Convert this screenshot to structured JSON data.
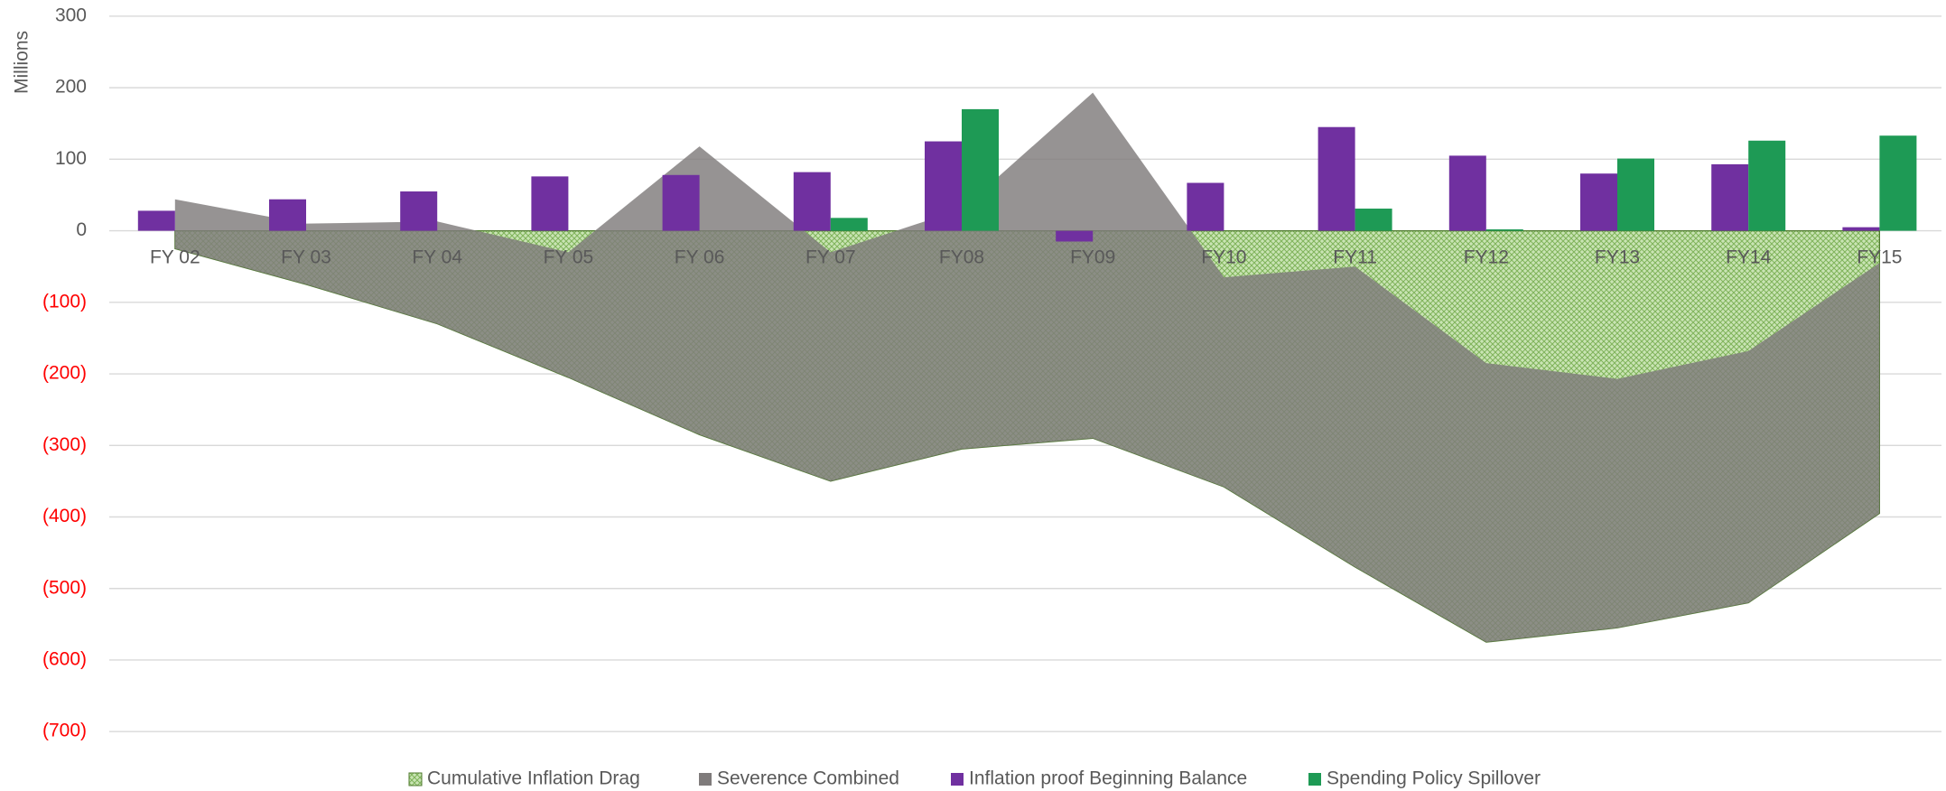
{
  "chart_data": {
    "type": "combo",
    "y_axis_title": "Millions",
    "categories": [
      "FY 02",
      "FY 03",
      "FY 04",
      "FY 05",
      "FY 06",
      "FY 07",
      "FY08",
      "FY09",
      "FY10",
      "FY11",
      "FY12",
      "FY13",
      "FY14",
      "FY15"
    ],
    "series": [
      {
        "name": "Cumulative Inflation Drag",
        "kind": "area",
        "color": "#a9d08e",
        "values": [
          -25,
          -75,
          -130,
          -205,
          -285,
          -350,
          -305,
          -290,
          -358,
          -470,
          -575,
          -555,
          -520,
          -395
        ]
      },
      {
        "name": "Severence Combined",
        "kind": "area",
        "color": "#7f7b7b",
        "values": [
          44,
          10,
          13,
          -30,
          118,
          -30,
          30,
          193,
          -65,
          -50,
          -185,
          -207,
          -168,
          -45
        ]
      },
      {
        "name": "Inflation proof Beginning Balance",
        "kind": "bar",
        "color": "#7030a0",
        "values": [
          28,
          44,
          55,
          76,
          78,
          82,
          125,
          -15,
          67,
          145,
          105,
          80,
          93,
          5
        ]
      },
      {
        "name": "Spending Policy Spillover",
        "kind": "bar",
        "color": "#1e9a55",
        "values": [
          null,
          null,
          null,
          null,
          null,
          18,
          170,
          null,
          null,
          31,
          2,
          101,
          126,
          133
        ]
      }
    ],
    "ylim": [
      -700,
      300
    ],
    "yticks": [
      {
        "value": -700,
        "label": "(700)"
      },
      {
        "value": -600,
        "label": "(600)"
      },
      {
        "value": -500,
        "label": "(500)"
      },
      {
        "value": -400,
        "label": "(400)"
      },
      {
        "value": -300,
        "label": "(300)"
      },
      {
        "value": -200,
        "label": "(200)"
      },
      {
        "value": -100,
        "label": "(100)"
      },
      0,
      100,
      200,
      300
    ],
    "negative_tick_color": "#ff0000",
    "grid": true,
    "legend": "bottom"
  }
}
